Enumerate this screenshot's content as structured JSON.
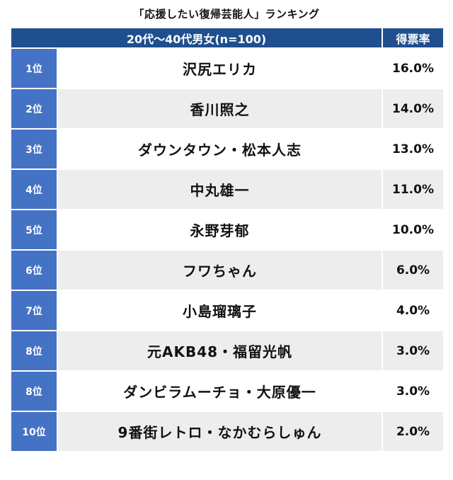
{
  "title": "「応援したい復帰芸能人」ランキング",
  "header": {
    "group_label": "20代〜40代男女(n=100)",
    "rate_label": "得票率"
  },
  "rows": [
    {
      "rank": "1位",
      "name": "沢尻エリカ",
      "rate": "16.0%"
    },
    {
      "rank": "2位",
      "name": "香川照之",
      "rate": "14.0%"
    },
    {
      "rank": "3位",
      "name": "ダウンタウン・松本人志",
      "rate": "13.0%"
    },
    {
      "rank": "4位",
      "name": "中丸雄一",
      "rate": "11.0%"
    },
    {
      "rank": "5位",
      "name": "永野芽郁",
      "rate": "10.0%"
    },
    {
      "rank": "6位",
      "name": "フワちゃん",
      "rate": "6.0%"
    },
    {
      "rank": "7位",
      "name": "小島瑠璃子",
      "rate": "4.0%"
    },
    {
      "rank": "8位",
      "name": "元AKB48・福留光帆",
      "rate": "3.0%"
    },
    {
      "rank": "8位",
      "name": "ダンビラムーチョ・大原優一",
      "rate": "3.0%"
    },
    {
      "rank": "10位",
      "name": "9番街レトロ・なかむらしゅん",
      "rate": "2.0%"
    }
  ],
  "colors": {
    "header_bg": "#1f4f8e",
    "rank_bg": "#4472c4",
    "row_alt_bg": "#ededed"
  }
}
